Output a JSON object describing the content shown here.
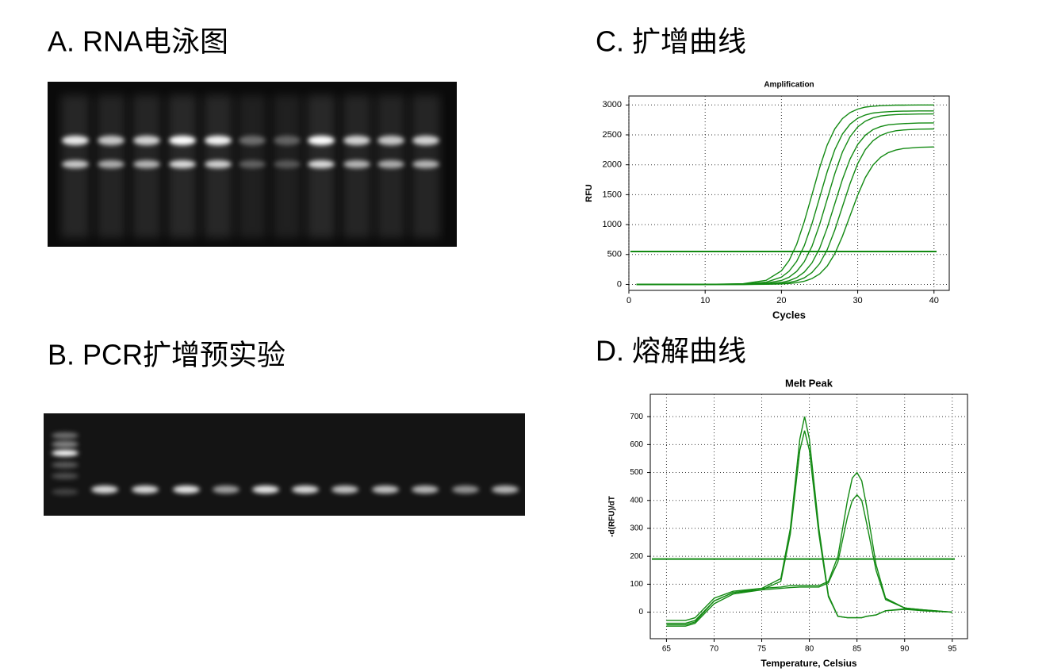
{
  "panels": [
    "A. RNA电泳图",
    "B. PCR扩增预实验",
    "C. 扩增曲线",
    "D. 熔解曲线"
  ],
  "chart_data": [
    {
      "type": "line",
      "title": "Amplification",
      "x_label": "Cycles",
      "y_label": "RFU",
      "x": [
        1,
        5,
        10,
        15,
        18,
        20,
        21,
        22,
        23,
        24,
        25,
        26,
        27,
        28,
        29,
        30,
        31,
        32,
        33,
        34,
        35,
        36,
        38,
        40
      ],
      "series": [
        {
          "color": "#138a13",
          "values": [
            0,
            0,
            1,
            11,
            69,
            228,
            399,
            669,
            1050,
            1500,
            1950,
            2331,
            2601,
            2772,
            2874,
            2931,
            2964,
            2979,
            2988,
            2994,
            2997,
            2998,
            3000,
            3000
          ]
        },
        {
          "color": "#138a13",
          "values": [
            0,
            0,
            0,
            6,
            36,
            122,
            220,
            386,
            647,
            1015,
            1450,
            1885,
            2253,
            2514,
            2680,
            2778,
            2833,
            2865,
            2880,
            2888,
            2894,
            2897,
            2900,
            2900
          ]
        },
        {
          "color": "#138a13",
          "values": [
            0,
            0,
            0,
            3,
            19,
            66,
            120,
            217,
            379,
            636,
            998,
            1425,
            1852,
            2214,
            2471,
            2633,
            2730,
            2784,
            2816,
            2830,
            2839,
            2844,
            2849,
            2850
          ]
        },
        {
          "color": "#138a13",
          "values": [
            0,
            0,
            0,
            1,
            10,
            33,
            62,
            113,
            205,
            359,
            602,
            945,
            1350,
            1755,
            2098,
            2341,
            2495,
            2587,
            2638,
            2668,
            2681,
            2689,
            2697,
            2700
          ]
        },
        {
          "color": "#138a13",
          "values": [
            0,
            0,
            0,
            0,
            5,
            17,
            32,
            60,
            109,
            198,
            346,
            580,
            910,
            1300,
            1690,
            2020,
            2254,
            2402,
            2491,
            2540,
            2569,
            2582,
            2595,
            2600
          ]
        },
        {
          "color": "#138a13",
          "values": [
            0,
            0,
            0,
            0,
            2,
            8,
            15,
            29,
            53,
            97,
            175,
            306,
            513,
            805,
            1150,
            1495,
            1787,
            1994,
            2125,
            2203,
            2247,
            2272,
            2292,
            2298
          ]
        }
      ],
      "threshold": 550,
      "threshold_color": "#138a13",
      "xlim": [
        0,
        42
      ],
      "xticks": [
        0,
        10,
        20,
        30,
        40
      ],
      "ylim": [
        -100,
        3150
      ],
      "yticks": [
        0,
        500,
        1000,
        1500,
        2000,
        2500,
        3000
      ],
      "grid": true
    },
    {
      "type": "line",
      "title": "Melt Peak",
      "x_label": "Temperature, Celsius",
      "y_label": "-d(RFU)/dT",
      "x": [
        65,
        67,
        68,
        70,
        72,
        75,
        77,
        78,
        79,
        79.5,
        80,
        81,
        82,
        83,
        84,
        84.5,
        85,
        85.5,
        86,
        87,
        88,
        90,
        92,
        95
      ],
      "series": [
        {
          "color": "#138a13",
          "values": [
            -40,
            -40,
            -30,
            40,
            70,
            85,
            120,
            300,
            620,
            700,
            620,
            300,
            60,
            -15,
            -20,
            -20,
            -20,
            -20,
            -15,
            -10,
            5,
            10,
            5,
            0
          ]
        },
        {
          "color": "#138a13",
          "values": [
            -50,
            -50,
            -40,
            30,
            65,
            80,
            110,
            280,
            580,
            650,
            580,
            280,
            55,
            -15,
            -20,
            -20,
            -20,
            -20,
            -15,
            -10,
            5,
            12,
            5,
            0
          ]
        },
        {
          "color": "#138a13",
          "values": [
            -30,
            -30,
            -20,
            50,
            75,
            85,
            90,
            95,
            95,
            95,
            95,
            95,
            110,
            200,
            400,
            480,
            500,
            470,
            380,
            170,
            50,
            15,
            8,
            0
          ]
        },
        {
          "color": "#138a13",
          "values": [
            -45,
            -45,
            -35,
            40,
            70,
            80,
            85,
            88,
            90,
            90,
            90,
            90,
            105,
            180,
            340,
            400,
            420,
            400,
            320,
            150,
            45,
            15,
            8,
            0
          ]
        }
      ],
      "threshold": 190,
      "threshold_color": "#138a13",
      "xlim": [
        63.3,
        96.6
      ],
      "xticks": [
        65,
        70,
        75,
        80,
        85,
        90,
        95
      ],
      "ylim": [
        -95,
        780
      ],
      "yticks": [
        0,
        100,
        200,
        300,
        400,
        500,
        600,
        700
      ],
      "grid": true
    }
  ]
}
